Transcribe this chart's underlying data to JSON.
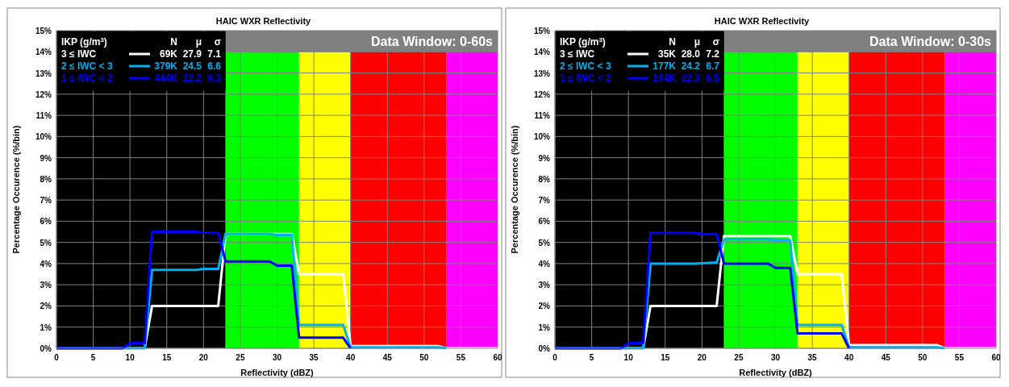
{
  "chart_data": [
    {
      "type": "line",
      "title": "HAIC WXR Reflectivity",
      "xlabel": "Reflectivity (dBZ)",
      "ylabel": "Percentage Occurence (%/bin)",
      "legend_title": "IKP (g/m$^{3}$)",
      "legend": "top left",
      "grid": true,
      "line_style": "solid",
      "marker": "none",
      "xlim": [
        0,
        60
      ],
      "xticks": [
        0,
        5,
        10,
        15,
        20,
        25,
        30,
        35,
        40,
        45,
        50,
        55,
        60
      ],
      "ylim": [
        0,
        15
      ],
      "yticks": [
        {
          "value": 0,
          "label": "0%"
        },
        {
          "value": 1,
          "label": "1%"
        },
        {
          "value": 2,
          "label": "2%"
        },
        {
          "value": 3,
          "label": "3%"
        },
        {
          "value": 4,
          "label": "4%"
        },
        {
          "value": 5,
          "label": "5%"
        },
        {
          "value": 6,
          "label": "6%"
        },
        {
          "value": 7,
          "label": "7%"
        },
        {
          "value": 8,
          "label": "8%"
        },
        {
          "value": 9,
          "label": "9%"
        },
        {
          "value": 10,
          "label": "10%"
        },
        {
          "value": 11,
          "label": "11%"
        },
        {
          "value": 12,
          "label": "12%"
        },
        {
          "value": 13,
          "label": "13%"
        },
        {
          "value": 14,
          "label": "14%"
        },
        {
          "value": 15,
          "label": "15%"
        }
      ],
      "bands": [
        {
          "axis": "x",
          "from": 0,
          "to": 23,
          "color": "#000000"
        },
        {
          "axis": "x",
          "from": 23,
          "to": 33,
          "color": "#00ff00"
        },
        {
          "axis": "x",
          "from": 33,
          "to": 40,
          "color": "#ffff00"
        },
        {
          "axis": "x",
          "from": 40,
          "to": 53,
          "color": "#ff0000"
        },
        {
          "axis": "x",
          "from": 53,
          "to": 60,
          "color": "#ff00ff"
        }
      ],
      "annotations": [
        "Data Window: 0-60s",
        "N",
        "μ",
        "σ",
        "69K",
        "27.9",
        "7.1",
        "379K",
        "24.5",
        "6.6",
        "444K",
        "22.2",
        "6.3"
      ],
      "series": [
        {
          "name": "3 ≤ IWC",
          "color": "#ffffff",
          "x": [
            0,
            12,
            13,
            22,
            23,
            32,
            33,
            39,
            40,
            52,
            53,
            60
          ],
          "values": [
            0,
            0,
            2.0,
            2.0,
            5.4,
            5.4,
            3.5,
            3.5,
            0.1,
            0.1,
            0,
            0
          ]
        },
        {
          "name": "2 ≤ IWC < 3",
          "color": "#00b0f0",
          "x": [
            0,
            12,
            13,
            19,
            20,
            22,
            23,
            29,
            30,
            32,
            33,
            39,
            40,
            52,
            53
          ],
          "values": [
            0,
            0,
            3.7,
            3.7,
            3.75,
            3.75,
            5.4,
            5.4,
            5.35,
            5.35,
            1.1,
            1.1,
            0.05,
            0.05,
            0
          ]
        },
        {
          "name": "1 ≤ IWC < 2",
          "color": "#0000ff",
          "x": [
            0,
            9,
            10,
            12,
            13,
            19,
            20,
            22,
            23,
            29,
            30,
            32,
            33,
            39,
            40
          ],
          "values": [
            0,
            0,
            0.25,
            0.25,
            5.5,
            5.5,
            5.45,
            5.45,
            4.1,
            4.1,
            3.9,
            3.9,
            0.5,
            0.5,
            0
          ]
        }
      ]
    },
    {
      "type": "line",
      "title": "HAIC WXR Reflectivity",
      "xlabel": "Reflectivity (dBZ)",
      "ylabel": "Percentage Occurence (%/bin)",
      "legend_title": "IKP (g/m$^{3}$)",
      "legend": "top left",
      "grid": true,
      "line_style": "solid",
      "marker": "none",
      "xlim": [
        0,
        60
      ],
      "xticks": [
        0,
        5,
        10,
        15,
        20,
        25,
        30,
        35,
        40,
        45,
        50,
        55,
        60
      ],
      "ylim": [
        0,
        15
      ],
      "yticks": [
        {
          "value": 0,
          "label": "0%"
        },
        {
          "value": 1,
          "label": "1%"
        },
        {
          "value": 2,
          "label": "2%"
        },
        {
          "value": 3,
          "label": "3%"
        },
        {
          "value": 4,
          "label": "4%"
        },
        {
          "value": 5,
          "label": "5%"
        },
        {
          "value": 6,
          "label": "6%"
        },
        {
          "value": 7,
          "label": "7%"
        },
        {
          "value": 8,
          "label": "8%"
        },
        {
          "value": 9,
          "label": "9%"
        },
        {
          "value": 10,
          "label": "10%"
        },
        {
          "value": 11,
          "label": "11%"
        },
        {
          "value": 12,
          "label": "12%"
        },
        {
          "value": 13,
          "label": "13%"
        },
        {
          "value": 14,
          "label": "14%"
        },
        {
          "value": 15,
          "label": "15%"
        }
      ],
      "bands": [
        {
          "axis": "x",
          "from": 0,
          "to": 23,
          "color": "#000000"
        },
        {
          "axis": "x",
          "from": 23,
          "to": 33,
          "color": "#00ff00"
        },
        {
          "axis": "x",
          "from": 33,
          "to": 40,
          "color": "#ffff00"
        },
        {
          "axis": "x",
          "from": 40,
          "to": 53,
          "color": "#ff0000"
        },
        {
          "axis": "x",
          "from": 53,
          "to": 60,
          "color": "#ff00ff"
        }
      ],
      "annotations": [
        "Data Window: 0-30s",
        "N",
        "μ",
        "σ",
        "35K",
        "28.0",
        "7.2",
        "177K",
        "24.2",
        "6.7",
        "194K",
        "22.3",
        "6.5"
      ],
      "series": [
        {
          "name": "3 ≤ IWC",
          "color": "#ffffff",
          "x": [
            0,
            12,
            13,
            22,
            23,
            32,
            33,
            39,
            40,
            52,
            53,
            60
          ],
          "values": [
            0,
            0,
            2.0,
            2.0,
            5.3,
            5.3,
            3.5,
            3.5,
            0.15,
            0.15,
            0,
            0
          ]
        },
        {
          "name": "2 ≤ IWC < 3",
          "color": "#00b0f0",
          "x": [
            0,
            12,
            13,
            19,
            20,
            22,
            23,
            29,
            30,
            32,
            33,
            39,
            40,
            52,
            53
          ],
          "values": [
            0,
            0,
            4.0,
            4.0,
            4.02,
            4.05,
            5.15,
            5.15,
            5.1,
            5.1,
            1.1,
            1.1,
            0.05,
            0.05,
            0
          ]
        },
        {
          "name": "1 ≤ IWC < 2",
          "color": "#0000ff",
          "x": [
            0,
            9,
            10,
            12,
            13,
            19,
            20,
            22,
            23,
            29,
            30,
            32,
            33,
            39,
            40
          ],
          "values": [
            0,
            0,
            0.25,
            0.25,
            5.45,
            5.45,
            5.4,
            5.4,
            4.0,
            4.0,
            3.8,
            3.8,
            0.7,
            0.7,
            0
          ]
        }
      ]
    }
  ]
}
